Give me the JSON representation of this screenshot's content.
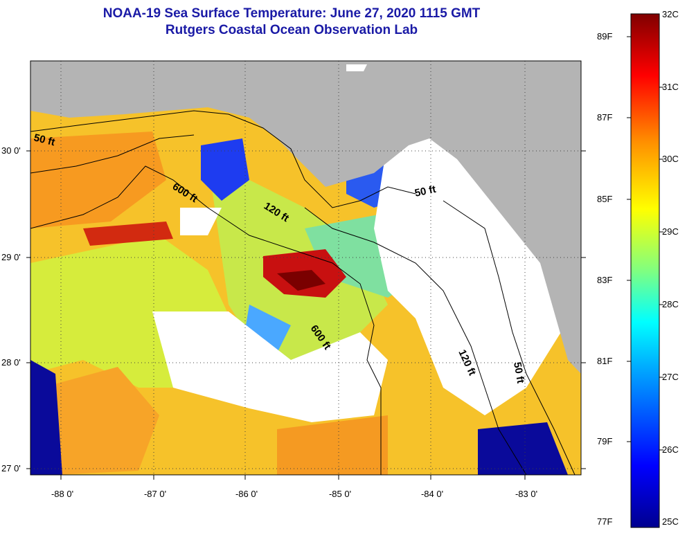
{
  "header": {
    "title": "NOAA-19 Sea Surface Temperature:  June 27, 2020 1115 GMT",
    "subtitle": "Rutgers Coastal Ocean Observation Lab"
  },
  "map": {
    "lat_labels": [
      "30 0'",
      "29 0'",
      "28 0'",
      "27 0'"
    ],
    "lon_labels": [
      "-88 0'",
      "-87 0'",
      "-86 0'",
      "-85 0'",
      "-84 0'",
      "-83 0'"
    ],
    "isobaths": [
      "50 ft",
      "600 ft",
      "120 ft",
      "600 ft",
      "50 ft",
      "120 ft",
      "50 ft"
    ],
    "colors": {
      "land": "#b4b4b4",
      "cloud": "#ffffff",
      "grid": "#404040"
    }
  },
  "colorbar": {
    "fahrenheit": [
      "89F",
      "87F",
      "85F",
      "83F",
      "81F",
      "79F",
      "77F"
    ],
    "celsius": [
      "32C",
      "31C",
      "30C",
      "29C",
      "28C",
      "27C",
      "26C",
      "25C"
    ],
    "gradient": [
      "#00008f",
      "#0000ff",
      "#00a0ff",
      "#00ffff",
      "#80ff80",
      "#ffff00",
      "#ff9000",
      "#ff0000",
      "#800000"
    ]
  }
}
